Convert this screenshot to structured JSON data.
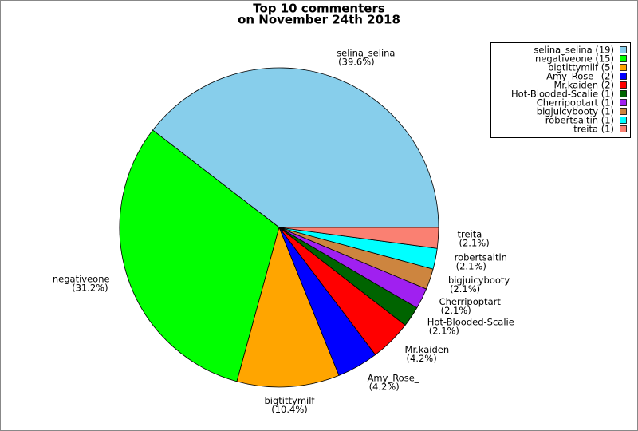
{
  "chart_data": {
    "type": "pie",
    "title": [
      "Top 10 commenters",
      "on November 24th 2018"
    ],
    "categories": [
      "selina_selina",
      "negativeone",
      "bigtittymilf",
      "Amy_Rose_",
      "Mr.kaiden",
      "Hot-Blooded-Scalie",
      "Cherripoptart",
      "bigjuicybooty",
      "robertsaltin",
      "treita"
    ],
    "values": [
      39.6,
      31.2,
      10.4,
      4.2,
      4.2,
      2.1,
      2.1,
      2.1,
      2.1,
      2.1
    ],
    "value_labels": [
      "(39.6%)",
      "(31.2%)",
      "(10.4%)",
      "(4.2%)",
      "(4.2%)",
      "(2.1%)",
      "(2.1%)",
      "(2.1%)",
      "(2.1%)",
      "(2.1%)"
    ],
    "legend_labels": [
      "selina_selina (19)",
      "negativeone (15)",
      "bigtittymilf (5)",
      "Amy_Rose_ (2)",
      "Mr.kaiden (2)",
      "Hot-Blooded-Scalie (1)",
      "Cherripoptart (1)",
      "bigjuicybooty (1)",
      "robertsaltin (1)",
      "treita (1)"
    ],
    "colors": [
      "#87ceeb",
      "#00ff00",
      "#ffa500",
      "#0000ff",
      "#ff0000",
      "#006400",
      "#a020f0",
      "#cd853f",
      "#00ffff",
      "#fa8072"
    ],
    "legend": "upper right"
  }
}
